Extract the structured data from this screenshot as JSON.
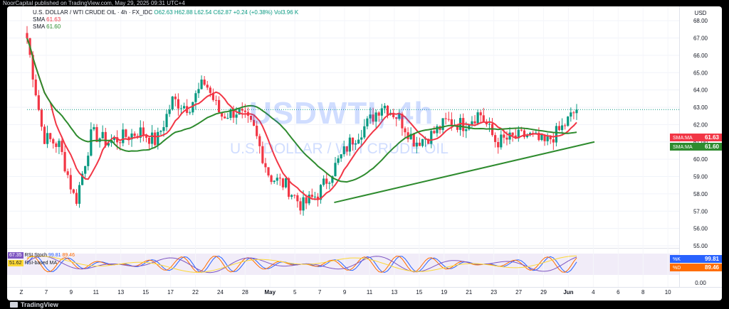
{
  "header": {
    "publisher_line": "NoorCapital published on TradingView.com, May 29, 2025 09:31 UTC+4"
  },
  "legend": {
    "symbol": "U.S. DOLLAR / WTI CRUDE OIL · 4h · FX_IDC",
    "ohlc": "O62.63 H62.88 L62.54 C62.87 +0.24 (+0.38%) Vol3.96 K",
    "sma1_label": "SMA",
    "sma1_value": "61.63",
    "sma2_label": "SMA",
    "sma2_value": "61.60"
  },
  "watermark": {
    "ticker": "USDWTI, 4h",
    "name": "U.S. DOLLAR / WTI CRUDE OIL"
  },
  "price_axis": {
    "currency": "USD",
    "ticks": [
      "68.00",
      "67.00",
      "66.00",
      "65.00",
      "64.00",
      "63.00",
      "62.00",
      "61.00",
      "60.00",
      "59.00",
      "58.00",
      "57.00",
      "56.00",
      "55.00"
    ],
    "sma1_badge": {
      "label": "SMA:MA",
      "value": "61.63",
      "color": "#f23645"
    },
    "sma2_badge": {
      "label": "SMA:MA",
      "value": "61.60",
      "color": "#2e8b2e"
    }
  },
  "indicator": {
    "rsi_label": "RSI",
    "rsi_value": "67.35",
    "rsi_ma_label": "RSI-based MA",
    "rsi_ma_value": "51.62",
    "stoch_label": "Stoch",
    "stoch_k": "99.81",
    "stoch_d": "89.46",
    "k_badge": {
      "label": "%K",
      "value": "99.81",
      "color": "#2962ff"
    },
    "d_badge": {
      "label": "%D",
      "value": "89.46",
      "color": "#ff6d00"
    },
    "axis_zero": "0.00"
  },
  "time_axis": {
    "ticks": [
      "Z",
      "7",
      "9",
      "11",
      "13",
      "15",
      "17",
      "22",
      "24",
      "28",
      "May",
      "5",
      "7",
      "9",
      "11",
      "13",
      "15",
      "19",
      "21",
      "23",
      "27",
      "29",
      "Jun",
      "4",
      "6",
      "8",
      "10"
    ]
  },
  "footer": {
    "brand": "TradingView"
  },
  "colors": {
    "up": "#089981",
    "down": "#f23645",
    "sma_fast": "#f23645",
    "sma_slow": "#2e8b2e",
    "trendline": "#2e8b2e"
  },
  "chart_data": {
    "type": "candlestick",
    "timeframe": "4h",
    "y_range": [
      55,
      68.5
    ],
    "trendline": {
      "from": {
        "date": "May 7",
        "price": 57.5
      },
      "to": {
        "date": "May 30",
        "price": 61.0
      }
    },
    "close_series": [
      {
        "date": "Apr 4",
        "close": 67.0
      },
      {
        "date": "Apr 7",
        "close": 61.3
      },
      {
        "date": "Apr 8",
        "close": 60.8
      },
      {
        "date": "Apr 9",
        "close": 57.5
      },
      {
        "date": "Apr 10",
        "close": 61.5
      },
      {
        "date": "Apr 11",
        "close": 61.0
      },
      {
        "date": "Apr 14",
        "close": 61.3
      },
      {
        "date": "Apr 15",
        "close": 61.6
      },
      {
        "date": "Apr 16",
        "close": 61.0
      },
      {
        "date": "Apr 17",
        "close": 63.4
      },
      {
        "date": "Apr 22",
        "close": 63.0
      },
      {
        "date": "Apr 23",
        "close": 64.5
      },
      {
        "date": "Apr 24",
        "close": 62.5
      },
      {
        "date": "Apr 28",
        "close": 62.8
      },
      {
        "date": "Apr 29",
        "close": 61.8
      },
      {
        "date": "May 1",
        "close": 59.0
      },
      {
        "date": "May 2",
        "close": 58.5
      },
      {
        "date": "May 5",
        "close": 57.3
      },
      {
        "date": "May 6",
        "close": 58.0
      },
      {
        "date": "May 7",
        "close": 59.5
      },
      {
        "date": "May 9",
        "close": 61.0
      },
      {
        "date": "May 12",
        "close": 62.0
      },
      {
        "date": "May 13",
        "close": 63.2
      },
      {
        "date": "May 14",
        "close": 62.4
      },
      {
        "date": "May 15",
        "close": 61.0
      },
      {
        "date": "May 16",
        "close": 61.4
      },
      {
        "date": "May 19",
        "close": 62.2
      },
      {
        "date": "May 20",
        "close": 62.0
      },
      {
        "date": "May 21",
        "close": 62.7
      },
      {
        "date": "May 22",
        "close": 61.0
      },
      {
        "date": "May 23",
        "close": 61.2
      },
      {
        "date": "May 26",
        "close": 61.4
      },
      {
        "date": "May 27",
        "close": 60.9
      },
      {
        "date": "May 28",
        "close": 61.7
      },
      {
        "date": "May 29",
        "close": 62.87
      }
    ]
  }
}
